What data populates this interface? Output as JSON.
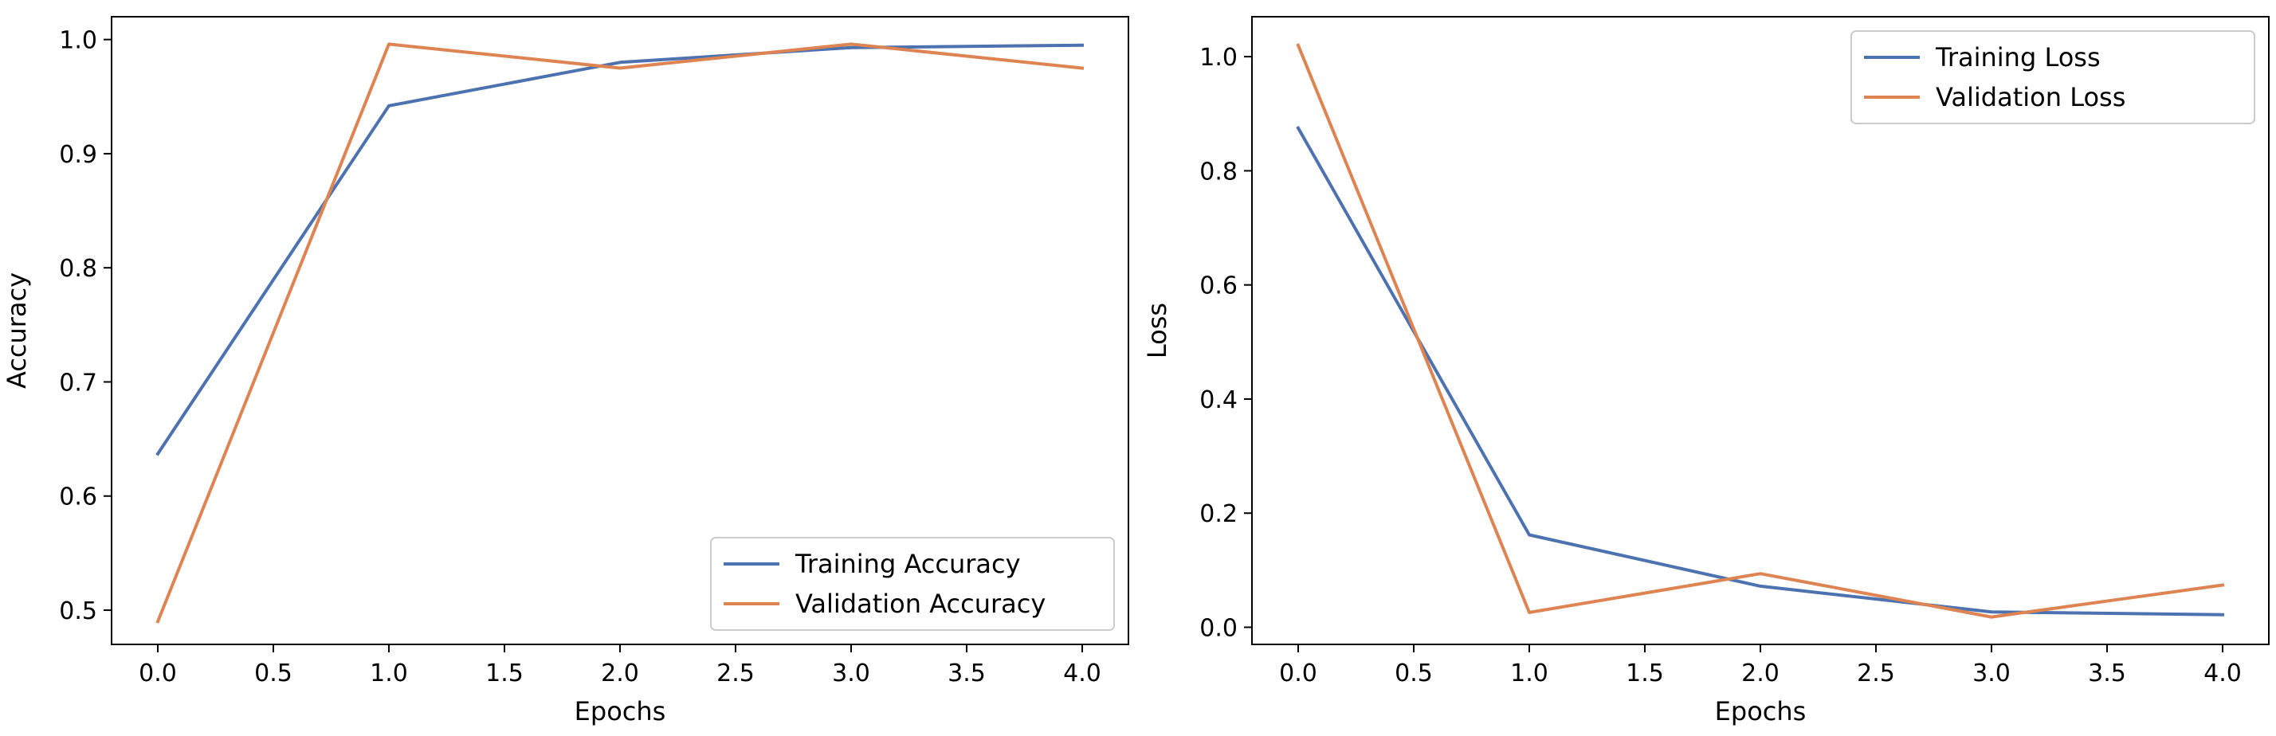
{
  "chart_data": [
    {
      "type": "line",
      "title": "",
      "xlabel": "Epochs",
      "ylabel": "Accuracy",
      "xlim": [
        -0.2,
        4.2
      ],
      "ylim": [
        0.47,
        1.02
      ],
      "xticks": [
        0,
        0.5,
        1,
        1.5,
        2,
        2.5,
        3,
        3.5,
        4
      ],
      "xtick_labels": [
        "0.0",
        "0.5",
        "1.0",
        "1.5",
        "2.0",
        "2.5",
        "3.0",
        "3.5",
        "4.0"
      ],
      "yticks": [
        0.5,
        0.6,
        0.7,
        0.8,
        0.9,
        1.0
      ],
      "ytick_labels": [
        "0.5",
        "0.6",
        "0.7",
        "0.8",
        "0.9",
        "1.0"
      ],
      "x": [
        0,
        1,
        2,
        3,
        4
      ],
      "series": [
        {
          "name": "Training Accuracy",
          "color": "#4c72b0",
          "values": [
            0.637,
            0.942,
            0.98,
            0.993,
            0.995
          ]
        },
        {
          "name": "Validation Accuracy",
          "color": "#dd8452",
          "values": [
            0.49,
            0.996,
            0.975,
            0.996,
            0.975
          ]
        }
      ],
      "legend": "lower-right",
      "grid": false
    },
    {
      "type": "line",
      "title": "",
      "xlabel": "Epochs",
      "ylabel": "Loss",
      "xlim": [
        -0.2,
        4.2
      ],
      "ylim": [
        -0.03,
        1.07
      ],
      "xticks": [
        0,
        0.5,
        1,
        1.5,
        2,
        2.5,
        3,
        3.5,
        4
      ],
      "xtick_labels": [
        "0.0",
        "0.5",
        "1.0",
        "1.5",
        "2.0",
        "2.5",
        "3.0",
        "3.5",
        "4.0"
      ],
      "yticks": [
        0,
        0.2,
        0.4,
        0.6,
        0.8,
        1.0
      ],
      "ytick_labels": [
        "0.0",
        "0.2",
        "0.4",
        "0.6",
        "0.8",
        "1.0"
      ],
      "x": [
        0,
        1,
        2,
        3,
        4
      ],
      "series": [
        {
          "name": "Training Loss",
          "color": "#4c72b0",
          "values": [
            0.875,
            0.162,
            0.072,
            0.027,
            0.022
          ]
        },
        {
          "name": "Validation Loss",
          "color": "#dd8452",
          "values": [
            1.02,
            0.026,
            0.094,
            0.018,
            0.074
          ]
        }
      ],
      "legend": "upper-right",
      "grid": false
    }
  ]
}
